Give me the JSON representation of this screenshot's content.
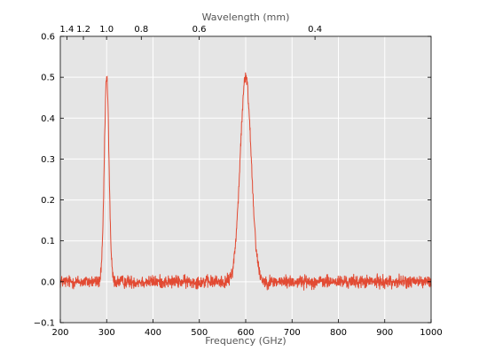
{
  "chart_data": {
    "type": "line",
    "title": "",
    "xlabel": "Frequency (GHz)",
    "ylabel": "",
    "top_xlabel": "Wavelength (mm)",
    "xlim": [
      200,
      1000
    ],
    "ylim": [
      -0.1,
      0.6
    ],
    "x_ticks": [
      "200",
      "300",
      "400",
      "500",
      "600",
      "700",
      "800",
      "900",
      "1000"
    ],
    "y_ticks": [
      "−0.1",
      "0.0",
      "0.1",
      "0.2",
      "0.3",
      "0.4",
      "0.5",
      "0.6"
    ],
    "top_ticks": [
      {
        "label": "1.4",
        "frequency": 214.1
      },
      {
        "label": "1.2",
        "frequency": 249.8
      },
      {
        "label": "1.0",
        "frequency": 299.8
      },
      {
        "label": "0.8",
        "frequency": 374.7
      },
      {
        "label": "0.6",
        "frequency": 499.6
      },
      {
        "label": "0.4",
        "frequency": 749.5
      }
    ],
    "grid": true,
    "background": "#e5e5e5",
    "grid_color": "#ffffff",
    "line_color": "#e24a33",
    "series": [
      {
        "peaks": [
          {
            "center": 300,
            "amplitude": 0.5,
            "width": 5
          },
          {
            "center": 600,
            "amplitude": 0.5,
            "width": 12
          }
        ],
        "baseline": 0.0,
        "noise": 0.01,
        "x_step": 0.5
      }
    ]
  }
}
